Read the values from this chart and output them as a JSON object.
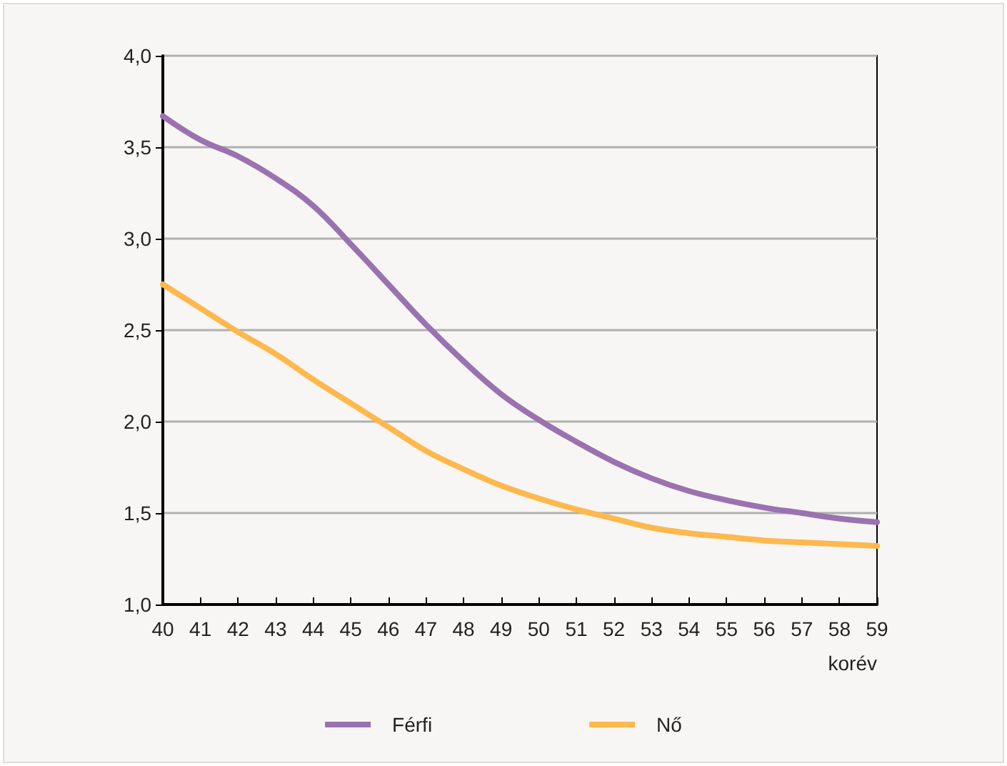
{
  "chart_data": {
    "type": "line",
    "xlabel": "korév",
    "categories": [
      "40",
      "41",
      "42",
      "43",
      "44",
      "45",
      "46",
      "47",
      "48",
      "49",
      "50",
      "51",
      "52",
      "53",
      "54",
      "55",
      "56",
      "57",
      "58",
      "59"
    ],
    "series": [
      {
        "name": "Férfi",
        "color": "#9b72b0",
        "values": [
          3.67,
          3.54,
          3.45,
          3.33,
          3.18,
          2.97,
          2.75,
          2.53,
          2.33,
          2.15,
          2.01,
          1.89,
          1.78,
          1.69,
          1.62,
          1.57,
          1.53,
          1.5,
          1.47,
          1.45
        ]
      },
      {
        "name": "Nő",
        "color": "#ffb84d",
        "values": [
          2.75,
          2.62,
          2.49,
          2.37,
          2.23,
          2.1,
          1.97,
          1.84,
          1.74,
          1.65,
          1.58,
          1.52,
          1.47,
          1.42,
          1.39,
          1.37,
          1.35,
          1.34,
          1.33,
          1.32
        ]
      }
    ],
    "ylim": [
      1,
      4
    ],
    "yticks": [
      {
        "value": 1,
        "label": "1,0"
      },
      {
        "value": 1.5,
        "label": "1,5"
      },
      {
        "value": 2,
        "label": "2,0"
      },
      {
        "value": 2.5,
        "label": "2,5"
      },
      {
        "value": 3,
        "label": "3,0"
      },
      {
        "value": 3.5,
        "label": "3,5"
      },
      {
        "value": 4,
        "label": "4,0"
      }
    ],
    "grid": "y",
    "legend": "bottom",
    "marker": "none",
    "line_style": "solid"
  }
}
